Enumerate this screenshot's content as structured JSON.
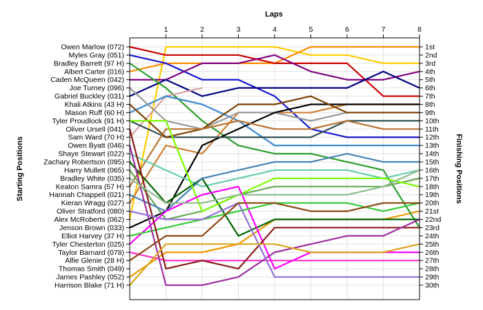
{
  "chart_data": {
    "type": "line",
    "title": "Laps",
    "ylabel_left": "Starting Positions",
    "ylabel_right": "Finishing Positions",
    "x_ticks": [
      1,
      2,
      3,
      4,
      5,
      6,
      7,
      8
    ],
    "xlim": [
      0,
      8
    ],
    "positions": 30,
    "grid": true,
    "drivers": [
      "Owen Marlow (072)",
      "Myles Gray (051)",
      "Bradley Barrett (97 H)",
      "Albert Carter (016)",
      "Caden McQueen (042)",
      "Joe Turney (096)",
      "Gabriel Buckley (031)",
      "Khali Atkins (43 H)",
      "Mason Ruff (60 H)",
      "Tyler Proudlock (91 H)",
      "Oliver Ursell (041)",
      "Sam Ward (70 H)",
      "Owen Byatt (046)",
      "Shaye Stewart (022)",
      "Zachary Robertson (095)",
      "Harry Mullett (065)",
      "Bradley White (035)",
      "Keaton Samra (57 H)",
      "Hannah Chappell (021)",
      "Kieran Wragg (027)",
      "Oliver Stratford (080)",
      "Alex McRoberts (062)",
      "Jenson Brown (033)",
      "Elliot Harvey (37 H)",
      "Tyler Chesterton (025)",
      "Taylor Barnard (078)",
      "Alfie Glenie (28 H)",
      "Thomas Smith (049)",
      "James Pashley (052)",
      "Harrison Blake (71 H)"
    ],
    "finishing_labels": [
      "1st",
      "2nd",
      "3rd",
      "4th",
      "5th",
      "6th",
      "7th",
      "8th",
      "9th",
      "10th",
      "11th",
      "12th",
      "13th",
      "14th",
      "15th",
      "16th",
      "17th",
      "18th",
      "19th",
      "20th",
      "21st",
      "22nd",
      "23rd",
      "24th",
      "25th",
      "26th",
      "27th",
      "28th",
      "29th",
      "30th"
    ],
    "series": [
      {
        "color": "#ee9900",
        "positions": [
          29,
          26,
          26,
          25,
          22,
          22,
          22,
          22,
          21
        ]
      },
      {
        "color": "#ffcc00",
        "positions": [
          22,
          1,
          1,
          1,
          1,
          2,
          2,
          3,
          3
        ]
      },
      {
        "color": "#ff8c00",
        "positions": [
          4,
          3,
          3,
          3,
          3,
          1,
          1,
          1,
          1
        ]
      },
      {
        "color": "#cc0000",
        "positions": [
          1,
          2,
          2,
          2,
          3,
          3,
          3,
          7,
          7
        ]
      },
      {
        "color": "#1515cc",
        "positions": [
          2,
          3,
          5,
          5,
          7,
          11,
          12,
          12,
          12
        ]
      },
      {
        "color": "#800080",
        "positions": [
          5,
          5,
          3,
          3,
          2,
          4,
          5,
          5,
          4
        ]
      },
      {
        "color": "#000080",
        "positions": [
          7,
          5,
          7,
          6,
          6,
          6,
          6,
          4,
          6
        ]
      },
      {
        "color": "#2a9d2a",
        "positions": [
          3,
          6,
          10,
          13,
          14,
          14,
          15,
          16,
          23
        ]
      },
      {
        "color": "#d8a0a0",
        "positions": [
          12,
          7,
          6
        ]
      },
      {
        "color": "#3a88d0",
        "positions": [
          9,
          7,
          8,
          10,
          13,
          13,
          13,
          13,
          13
        ]
      },
      {
        "color": "#cd7f32",
        "positions": [
          20,
          13,
          14,
          9,
          9,
          9,
          8,
          8,
          8
        ]
      },
      {
        "color": "#999999",
        "positions": [
          6,
          10,
          11,
          9,
          9,
          10,
          9,
          9,
          9
        ]
      },
      {
        "color": "#000000",
        "positions": [
          23,
          21,
          13,
          11,
          9,
          8,
          8,
          8,
          8
        ]
      },
      {
        "color": "#2f4f4f",
        "positions": [
          10,
          12,
          12,
          12,
          12,
          12,
          10,
          10,
          10
        ]
      },
      {
        "color": "#7b3f00",
        "positions": [
          8,
          12,
          11,
          8,
          8,
          7,
          9,
          9,
          9
        ]
      },
      {
        "color": "#b87333",
        "positions": [
          18,
          11,
          11,
          10,
          11,
          11,
          10,
          11,
          11
        ]
      },
      {
        "color": "#66cdaa",
        "positions": [
          14,
          16,
          18,
          17,
          16,
          16,
          16,
          17,
          16
        ]
      },
      {
        "color": "#006400",
        "positions": [
          15,
          20,
          17,
          24,
          22,
          22,
          22,
          22,
          22
        ]
      },
      {
        "color": "#66aa55",
        "positions": [
          16,
          22,
          21,
          19,
          18,
          18,
          18,
          18,
          17
        ]
      },
      {
        "color": "#4682b4",
        "positions": [
          19,
          21,
          17,
          16,
          15,
          15,
          14,
          15,
          15
        ]
      },
      {
        "color": "#7cfc00",
        "positions": [
          10,
          10,
          21,
          19,
          17,
          17,
          17,
          17,
          18
        ]
      },
      {
        "color": "#ff33cc",
        "positions": [
          26,
          27,
          27,
          27,
          27,
          27,
          27,
          27,
          27
        ]
      },
      {
        "color": "#ff00ff",
        "positions": [
          25,
          21,
          19,
          18,
          28,
          26,
          26,
          26,
          26
        ]
      },
      {
        "color": "#33cc33",
        "positions": [
          24,
          23,
          22,
          21,
          20,
          20,
          20,
          21,
          20
        ]
      },
      {
        "color": "#8b1a1a",
        "positions": [
          11,
          28,
          27,
          28,
          23,
          23,
          23,
          23,
          23
        ]
      },
      {
        "color": "#9c2fa0",
        "positions": [
          13,
          30,
          30,
          29,
          26,
          25,
          24,
          24,
          22
        ]
      },
      {
        "color": "#8fbc8f",
        "positions": [
          17,
          20,
          20,
          19,
          19,
          19,
          19,
          18,
          16
        ]
      },
      {
        "color": "#9370db",
        "positions": [
          21,
          22,
          22,
          20,
          29,
          29,
          29,
          29,
          29
        ]
      },
      {
        "color": "#daa520",
        "positions": [
          30,
          25,
          25,
          25,
          25,
          26,
          26,
          26,
          25
        ]
      },
      {
        "color": "#8b4513",
        "positions": [
          27,
          24,
          24,
          20,
          20,
          21,
          21,
          20,
          20
        ]
      }
    ]
  }
}
